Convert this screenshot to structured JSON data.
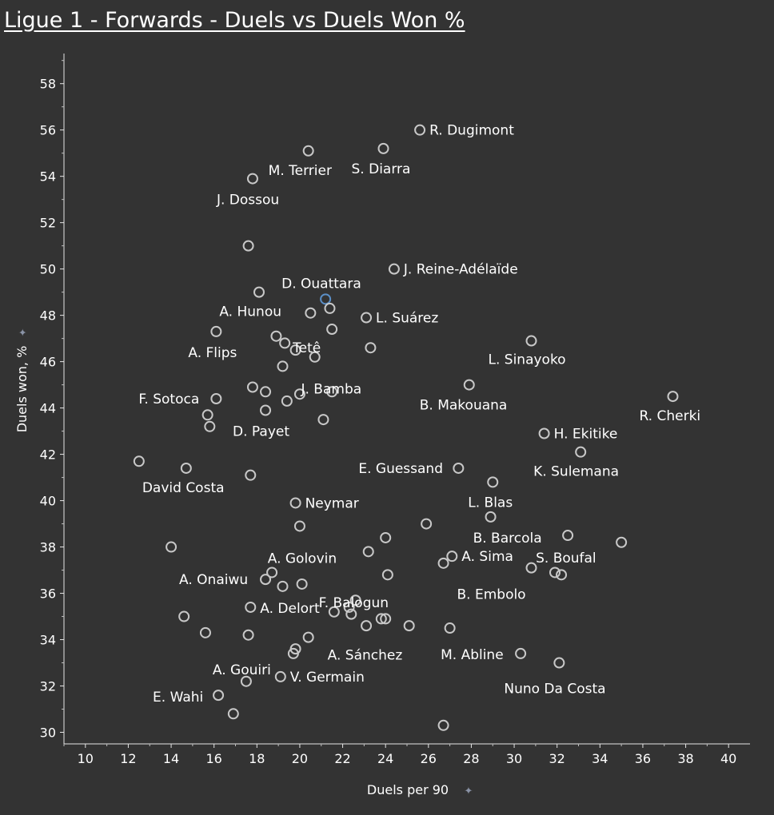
{
  "title": "Ligue 1 - Forwards - Duels vs Duels Won %",
  "chart_data": {
    "type": "scatter",
    "title": "Ligue 1 - Forwards - Duels vs Duels Won %",
    "xlabel": "Duels per 90",
    "ylabel": "Duels won, %",
    "xlim": [
      9,
      41
    ],
    "ylim": [
      29.5,
      59.3
    ],
    "xticks": [
      10,
      12,
      14,
      16,
      18,
      20,
      22,
      24,
      26,
      28,
      30,
      32,
      34,
      36,
      38,
      40
    ],
    "yticks": [
      30,
      32,
      34,
      36,
      38,
      40,
      42,
      44,
      46,
      48,
      50,
      52,
      54,
      56,
      58
    ],
    "grid": false,
    "highlight_color": "#5b8fc7",
    "marker_color": "#c8c8c8",
    "points": [
      {
        "x": 25.6,
        "y": 56.0,
        "label": "R. Dugimont"
      },
      {
        "x": 20.4,
        "y": 55.1,
        "label": "M. Terrier"
      },
      {
        "x": 23.9,
        "y": 55.2,
        "label": "S. Diarra"
      },
      {
        "x": 17.8,
        "y": 53.9,
        "label": "J. Dossou"
      },
      {
        "x": 17.6,
        "y": 51.0
      },
      {
        "x": 24.4,
        "y": 50.0,
        "label": "J. Reine-Adélaïde"
      },
      {
        "x": 21.2,
        "y": 48.7,
        "label": "D. Ouattara",
        "highlight": true
      },
      {
        "x": 18.1,
        "y": 49.0
      },
      {
        "x": 21.4,
        "y": 48.3
      },
      {
        "x": 20.5,
        "y": 48.1,
        "label": "A. Hunou"
      },
      {
        "x": 23.1,
        "y": 47.9,
        "label": "L. Suárez"
      },
      {
        "x": 21.5,
        "y": 47.4,
        "label": "Tetê"
      },
      {
        "x": 16.1,
        "y": 47.3,
        "label": "A. Flips"
      },
      {
        "x": 18.9,
        "y": 47.1
      },
      {
        "x": 19.3,
        "y": 46.8
      },
      {
        "x": 30.8,
        "y": 46.9,
        "label": "L. Sinayoko"
      },
      {
        "x": 19.8,
        "y": 46.5
      },
      {
        "x": 23.3,
        "y": 46.6
      },
      {
        "x": 20.7,
        "y": 46.2
      },
      {
        "x": 19.2,
        "y": 45.8,
        "label": "J. Bamba"
      },
      {
        "x": 27.9,
        "y": 45.0,
        "label": "B. Makouana"
      },
      {
        "x": 17.8,
        "y": 44.9
      },
      {
        "x": 18.4,
        "y": 44.7
      },
      {
        "x": 20.0,
        "y": 44.6
      },
      {
        "x": 21.5,
        "y": 44.7
      },
      {
        "x": 37.4,
        "y": 44.5,
        "label": "R. Cherki"
      },
      {
        "x": 16.1,
        "y": 44.4,
        "label": "F. Sotoca"
      },
      {
        "x": 19.4,
        "y": 44.3
      },
      {
        "x": 18.4,
        "y": 43.9,
        "label": "D. Payet"
      },
      {
        "x": 15.7,
        "y": 43.7
      },
      {
        "x": 21.1,
        "y": 43.5
      },
      {
        "x": 15.8,
        "y": 43.2
      },
      {
        "x": 31.4,
        "y": 42.9,
        "label": "H. Ekitike"
      },
      {
        "x": 33.1,
        "y": 42.1,
        "label": "K. Sulemana"
      },
      {
        "x": 12.5,
        "y": 41.7
      },
      {
        "x": 14.7,
        "y": 41.4,
        "label": "David Costa"
      },
      {
        "x": 27.4,
        "y": 41.4,
        "label": "E. Guessand"
      },
      {
        "x": 17.7,
        "y": 41.1
      },
      {
        "x": 29.0,
        "y": 40.8,
        "label": "L. Blas"
      },
      {
        "x": 19.8,
        "y": 39.9,
        "label": "Neymar"
      },
      {
        "x": 28.9,
        "y": 39.3,
        "label": "B. Barcola"
      },
      {
        "x": 25.9,
        "y": 39.0
      },
      {
        "x": 20.0,
        "y": 38.9
      },
      {
        "x": 24.0,
        "y": 38.4
      },
      {
        "x": 32.5,
        "y": 38.5,
        "label": "S. Boufal"
      },
      {
        "x": 35.0,
        "y": 38.2
      },
      {
        "x": 14.0,
        "y": 38.0
      },
      {
        "x": 23.2,
        "y": 37.8,
        "label": "A. Golovin"
      },
      {
        "x": 27.1,
        "y": 37.6,
        "label": "A. Sima"
      },
      {
        "x": 26.7,
        "y": 37.3
      },
      {
        "x": 30.8,
        "y": 37.1,
        "label": "B. Embolo"
      },
      {
        "x": 31.9,
        "y": 36.9
      },
      {
        "x": 32.2,
        "y": 36.8
      },
      {
        "x": 18.7,
        "y": 36.9
      },
      {
        "x": 24.1,
        "y": 36.8
      },
      {
        "x": 18.4,
        "y": 36.6,
        "label": "A. Onaiwu"
      },
      {
        "x": 20.1,
        "y": 36.4
      },
      {
        "x": 19.2,
        "y": 36.3
      },
      {
        "x": 22.6,
        "y": 35.7,
        "label": "F. Balogun"
      },
      {
        "x": 22.3,
        "y": 35.4
      },
      {
        "x": 17.7,
        "y": 35.4,
        "label": "A. Delort"
      },
      {
        "x": 21.6,
        "y": 35.2
      },
      {
        "x": 22.4,
        "y": 35.1
      },
      {
        "x": 14.6,
        "y": 35.0
      },
      {
        "x": 23.8,
        "y": 34.9
      },
      {
        "x": 24.0,
        "y": 34.9
      },
      {
        "x": 23.1,
        "y": 34.6
      },
      {
        "x": 25.1,
        "y": 34.6
      },
      {
        "x": 27.0,
        "y": 34.5
      },
      {
        "x": 15.6,
        "y": 34.3
      },
      {
        "x": 17.6,
        "y": 34.2
      },
      {
        "x": 20.4,
        "y": 34.1,
        "label": "A. Sánchez"
      },
      {
        "x": 19.8,
        "y": 33.6
      },
      {
        "x": 19.7,
        "y": 33.4,
        "label": "A. Gouiri"
      },
      {
        "x": 30.3,
        "y": 33.4,
        "label": "M. Abline"
      },
      {
        "x": 32.1,
        "y": 33.0,
        "label": "Nuno Da Costa"
      },
      {
        "x": 19.1,
        "y": 32.4,
        "label": "V. Germain"
      },
      {
        "x": 17.5,
        "y": 32.2
      },
      {
        "x": 16.2,
        "y": 31.6,
        "label": "E. Wahi"
      },
      {
        "x": 16.9,
        "y": 30.8
      },
      {
        "x": 26.7,
        "y": 30.3
      }
    ]
  }
}
